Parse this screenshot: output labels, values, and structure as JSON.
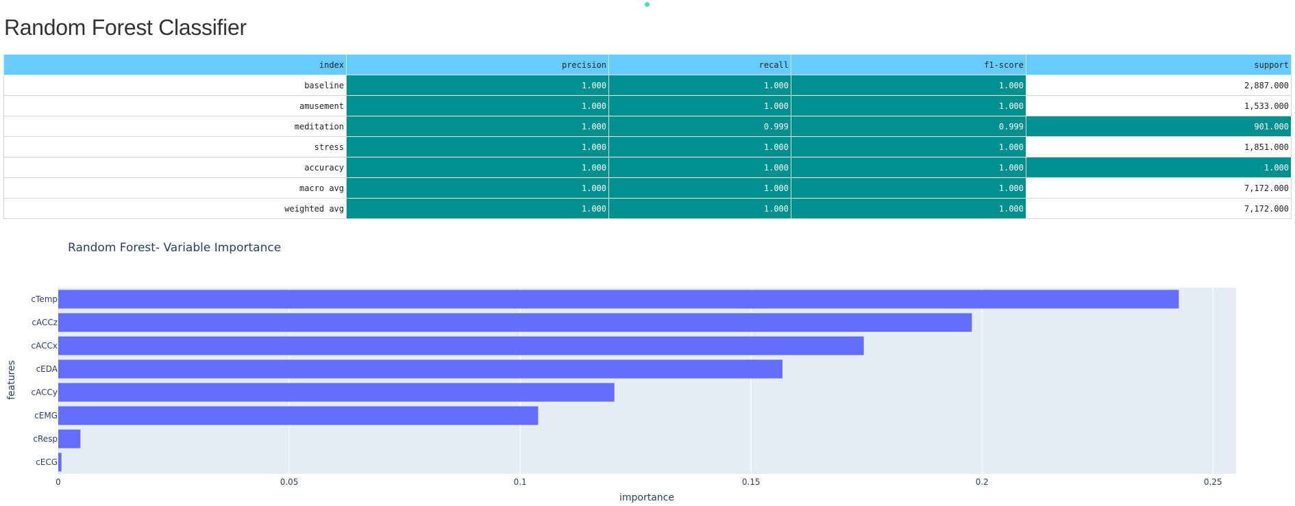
{
  "page": {
    "title": "Random Forest Classifier"
  },
  "table": {
    "columns": [
      "index",
      "precision",
      "recall",
      "f1-score",
      "support"
    ],
    "rows": [
      {
        "cells": [
          "baseline",
          "1.000",
          "1.000",
          "1.000",
          "2,887.000"
        ],
        "highlight": [
          false,
          true,
          true,
          true,
          false
        ]
      },
      {
        "cells": [
          "amusement",
          "1.000",
          "1.000",
          "1.000",
          "1,533.000"
        ],
        "highlight": [
          false,
          true,
          true,
          true,
          false
        ]
      },
      {
        "cells": [
          "meditation",
          "1.000",
          "0.999",
          "0.999",
          "901.000"
        ],
        "highlight": [
          false,
          true,
          true,
          true,
          true
        ]
      },
      {
        "cells": [
          "stress",
          "1.000",
          "1.000",
          "1.000",
          "1,851.000"
        ],
        "highlight": [
          false,
          true,
          true,
          true,
          false
        ]
      },
      {
        "cells": [
          "accuracy",
          "1.000",
          "1.000",
          "1.000",
          "1.000"
        ],
        "highlight": [
          false,
          true,
          true,
          true,
          true
        ]
      },
      {
        "cells": [
          "macro avg",
          "1.000",
          "1.000",
          "1.000",
          "7,172.000"
        ],
        "highlight": [
          false,
          true,
          true,
          true,
          false
        ]
      },
      {
        "cells": [
          "weighted avg",
          "1.000",
          "1.000",
          "1.000",
          "7,172.000"
        ],
        "highlight": [
          false,
          true,
          true,
          true,
          false
        ]
      }
    ],
    "colors": {
      "header": "#66ccff",
      "highlight": "#009090"
    }
  },
  "chart_data": {
    "type": "bar",
    "orientation": "horizontal",
    "title": "Random Forest- Variable Importance",
    "xlabel": "importance",
    "ylabel": "features",
    "categories": [
      "cTemp",
      "cACCz",
      "cACCx",
      "cEDA",
      "cACCy",
      "cEMG",
      "cResp",
      "cECG"
    ],
    "values": [
      0.2426,
      0.1978,
      0.1744,
      0.1568,
      0.1204,
      0.1039,
      0.0048,
      0.0007
    ],
    "xlim": [
      0,
      0.255
    ],
    "xticks": [
      0,
      0.05,
      0.1,
      0.15,
      0.2,
      0.25
    ],
    "xtick_labels": [
      "0",
      "0.05",
      "0.1",
      "0.15",
      "0.2",
      "0.25"
    ],
    "grid": true,
    "bar_color": "#636efa",
    "plot_bg": "#e5ecf6"
  }
}
